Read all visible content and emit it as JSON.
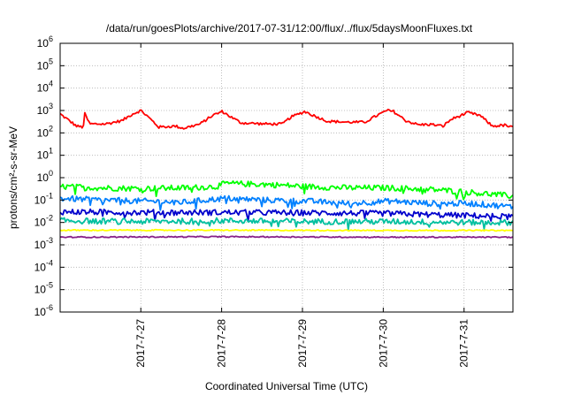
{
  "chart_data": {
    "type": "line",
    "title": "/data/run/goesPlots/archive/2017-07-31/12:00/flux/../flux/5daysMoonFluxes.txt",
    "xlabel": "Coordinated Universal Time (UTC)",
    "ylabel": "protons/cm²-s-sr-MeV",
    "y_scale": "log",
    "ylim_exponent": [
      -6,
      6
    ],
    "y_tick_base": "10",
    "y_tick_exponents": [
      "-6",
      "-5",
      "-4",
      "-3",
      "-2",
      "-1",
      "0",
      "1",
      "2",
      "3",
      "4",
      "5",
      "6"
    ],
    "xlim_days": [
      "2017-07-26 00:26",
      "2017-07-31 12:00"
    ],
    "x_tick_labels": [
      "2017-7-27",
      "2017-7-28",
      "2017-7-29",
      "2017-7-30",
      "2017-7-31"
    ],
    "grid": true,
    "x_sample": [
      "2017-07-26 00:26",
      "2017-07-26 12:00",
      "2017-07-27 00:00",
      "2017-07-27 12:00",
      "2017-07-28 00:00",
      "2017-07-28 12:00",
      "2017-07-29 00:00",
      "2017-07-29 12:00",
      "2017-07-30 00:00",
      "2017-07-30 12:00",
      "2017-07-31 00:00",
      "2017-07-31 12:00"
    ],
    "series": [
      {
        "color": "#ff0000",
        "style": "dense",
        "anchors": [
          [
            0.0,
            700
          ],
          [
            0.2,
            200
          ],
          [
            0.28,
            180
          ],
          [
            0.3,
            700
          ],
          [
            0.36,
            250
          ],
          [
            0.55,
            250
          ],
          [
            0.75,
            350
          ],
          [
            0.88,
            700
          ],
          [
            0.98,
            1000
          ],
          [
            1.05,
            600
          ],
          [
            1.2,
            180
          ],
          [
            1.4,
            200
          ],
          [
            1.5,
            160
          ],
          [
            1.7,
            250
          ],
          [
            1.85,
            600
          ],
          [
            1.97,
            900
          ],
          [
            2.1,
            450
          ],
          [
            2.2,
            280
          ],
          [
            2.5,
            250
          ],
          [
            2.7,
            250
          ],
          [
            2.8,
            500
          ],
          [
            2.97,
            900
          ],
          [
            3.1,
            550
          ],
          [
            3.25,
            330
          ],
          [
            3.5,
            300
          ],
          [
            3.7,
            300
          ],
          [
            3.85,
            600
          ],
          [
            3.97,
            1000
          ],
          [
            4.05,
            900
          ],
          [
            4.2,
            350
          ],
          [
            4.35,
            230
          ],
          [
            4.5,
            240
          ],
          [
            4.65,
            200
          ],
          [
            4.75,
            400
          ],
          [
            4.95,
            800
          ],
          [
            5.1,
            600
          ],
          [
            5.25,
            200
          ],
          [
            5.4,
            220
          ],
          [
            5.5,
            170
          ]
        ]
      },
      {
        "color": "#00ff00",
        "style": "noisy",
        "anchors": [
          [
            0.0,
            0.4
          ],
          [
            0.5,
            0.35
          ],
          [
            1.0,
            0.33
          ],
          [
            1.5,
            0.35
          ],
          [
            1.9,
            0.4
          ],
          [
            2.0,
            0.55
          ],
          [
            2.5,
            0.5
          ],
          [
            3.0,
            0.4
          ],
          [
            3.5,
            0.35
          ],
          [
            4.0,
            0.35
          ],
          [
            4.5,
            0.3
          ],
          [
            5.0,
            0.22
          ],
          [
            5.5,
            0.15
          ]
        ]
      },
      {
        "color": "#0080ff",
        "style": "noisy",
        "anchors": [
          [
            0.0,
            0.12
          ],
          [
            0.5,
            0.1
          ],
          [
            1.0,
            0.09
          ],
          [
            1.5,
            0.08
          ],
          [
            2.0,
            0.12
          ],
          [
            2.5,
            0.1
          ],
          [
            3.0,
            0.09
          ],
          [
            3.5,
            0.07
          ],
          [
            4.0,
            0.09
          ],
          [
            4.5,
            0.07
          ],
          [
            5.0,
            0.07
          ],
          [
            5.5,
            0.05
          ]
        ]
      },
      {
        "color": "#0000cc",
        "style": "noisy",
        "anchors": [
          [
            0.0,
            0.03
          ],
          [
            1.0,
            0.028
          ],
          [
            2.0,
            0.028
          ],
          [
            3.0,
            0.027
          ],
          [
            4.0,
            0.025
          ],
          [
            5.0,
            0.02
          ],
          [
            5.5,
            0.018
          ]
        ]
      },
      {
        "color": "#00c0a0",
        "style": "noisy",
        "anchors": [
          [
            0.0,
            0.012
          ],
          [
            1.0,
            0.011
          ],
          [
            2.0,
            0.012
          ],
          [
            3.0,
            0.011
          ],
          [
            4.0,
            0.011
          ],
          [
            5.0,
            0.01
          ],
          [
            5.5,
            0.01
          ]
        ]
      },
      {
        "color": "#ffff00",
        "style": "flat",
        "anchors": [
          [
            0.0,
            0.0045
          ],
          [
            2.0,
            0.0045
          ],
          [
            4.0,
            0.0044
          ],
          [
            5.5,
            0.0044
          ]
        ]
      },
      {
        "color": "#882288",
        "style": "flat",
        "anchors": [
          [
            0.0,
            0.0022
          ],
          [
            2.0,
            0.0023
          ],
          [
            4.0,
            0.0022
          ],
          [
            5.5,
            0.0022
          ]
        ]
      }
    ]
  }
}
